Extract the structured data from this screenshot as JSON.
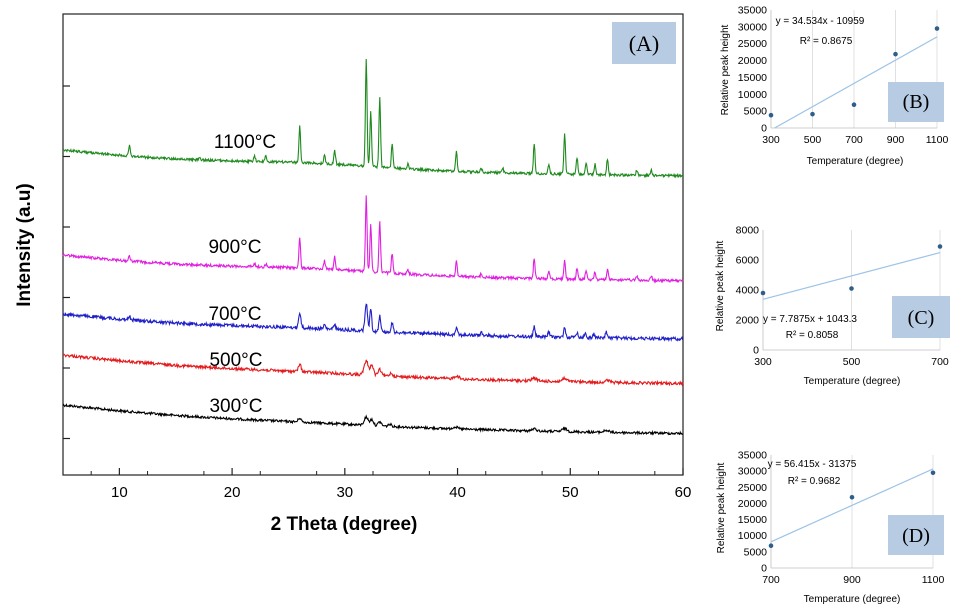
{
  "chart_data": [
    {
      "id": "A",
      "type": "line",
      "panel_label": "(A)",
      "title": "",
      "xlabel": "2 Theta (degree)",
      "ylabel": "Intensity (a.u)",
      "xlim": [
        5,
        60
      ],
      "xticks": [
        10,
        20,
        30,
        40,
        50,
        60
      ],
      "series": [
        {
          "name": "300°C",
          "color": "#000000",
          "baseline": 405,
          "end_baseline": 437,
          "noise": 1.2,
          "ascale": 0.3,
          "peaks": [
            [
              26.0,
              4,
              0.18
            ],
            [
              31.9,
              8,
              0.25
            ],
            [
              32.4,
              6,
              0.2
            ],
            [
              33.1,
              4,
              0.2
            ],
            [
              34.0,
              2,
              0.2
            ],
            [
              39.8,
              2,
              0.3
            ],
            [
              46.8,
              2,
              0.3
            ],
            [
              49.5,
              3,
              0.3
            ],
            [
              53.2,
              2,
              0.3
            ]
          ]
        },
        {
          "name": "500°C",
          "color": "#e31a1c",
          "baseline": 355,
          "end_baseline": 387,
          "noise": 1.4,
          "ascale": 0.4,
          "peaks": [
            [
              26.0,
              7,
              0.18
            ],
            [
              31.9,
              14,
              0.25
            ],
            [
              32.4,
              10,
              0.2
            ],
            [
              33.1,
              6,
              0.2
            ],
            [
              34.1,
              3,
              0.2
            ],
            [
              39.9,
              3,
              0.3
            ],
            [
              46.8,
              3,
              0.3
            ],
            [
              49.5,
              3,
              0.3
            ],
            [
              53.3,
              2,
              0.3
            ]
          ]
        },
        {
          "name": "700°C",
          "color": "#1f1fc8",
          "baseline": 314,
          "end_baseline": 342,
          "noise": 1.6,
          "ascale": 0.55,
          "peaks": [
            [
              10.9,
              3,
              0.15
            ],
            [
              26.0,
              14,
              0.15
            ],
            [
              28.2,
              4,
              0.12
            ],
            [
              29.1,
              5,
              0.12
            ],
            [
              31.9,
              28,
              0.15
            ],
            [
              32.3,
              22,
              0.12
            ],
            [
              33.1,
              16,
              0.12
            ],
            [
              34.2,
              9,
              0.12
            ],
            [
              39.9,
              7,
              0.15
            ],
            [
              42.1,
              3,
              0.12
            ],
            [
              46.8,
              10,
              0.12
            ],
            [
              48.1,
              5,
              0.12
            ],
            [
              49.5,
              10,
              0.12
            ],
            [
              50.6,
              5,
              0.12
            ],
            [
              51.3,
              4,
              0.12
            ],
            [
              52.1,
              4,
              0.12
            ],
            [
              53.2,
              6,
              0.12
            ]
          ]
        },
        {
          "name": "900°C",
          "color": "#e020e0",
          "baseline": 255,
          "end_baseline": 284,
          "noise": 1.3,
          "ascale": 0.9,
          "peaks": [
            [
              10.9,
              5,
              0.1
            ],
            [
              22.0,
              3,
              0.1
            ],
            [
              23.0,
              3,
              0.1
            ],
            [
              26.0,
              30,
              0.1
            ],
            [
              28.2,
              8,
              0.1
            ],
            [
              29.1,
              13,
              0.1
            ],
            [
              31.9,
              75,
              0.1
            ],
            [
              32.3,
              48,
              0.1
            ],
            [
              33.1,
              50,
              0.1
            ],
            [
              34.2,
              20,
              0.1
            ],
            [
              35.6,
              4,
              0.1
            ],
            [
              39.9,
              17,
              0.1
            ],
            [
              42.1,
              4,
              0.1
            ],
            [
              46.8,
              21,
              0.1
            ],
            [
              48.1,
              8,
              0.1
            ],
            [
              49.5,
              20,
              0.1
            ],
            [
              50.6,
              11,
              0.1
            ],
            [
              51.4,
              9,
              0.1
            ],
            [
              52.2,
              8,
              0.1
            ],
            [
              53.3,
              11,
              0.1
            ],
            [
              55.9,
              4,
              0.1
            ],
            [
              57.2,
              4,
              0.1
            ]
          ]
        },
        {
          "name": "1100°C",
          "color": "#1e8a1e",
          "baseline": 150,
          "end_baseline": 179,
          "noise": 1.2,
          "ascale": 1.0,
          "peaks": [
            [
              10.9,
              10,
              0.1
            ],
            [
              17.1,
              3,
              0.1
            ],
            [
              22.0,
              5,
              0.1
            ],
            [
              23.0,
              6,
              0.1
            ],
            [
              26.0,
              36,
              0.1
            ],
            [
              28.2,
              9,
              0.1
            ],
            [
              29.1,
              14,
              0.1
            ],
            [
              31.9,
              108,
              0.1
            ],
            [
              32.3,
              56,
              0.1
            ],
            [
              33.1,
              70,
              0.1
            ],
            [
              34.2,
              24,
              0.1
            ],
            [
              35.6,
              5,
              0.1
            ],
            [
              39.9,
              20,
              0.1
            ],
            [
              42.1,
              4,
              0.1
            ],
            [
              44.0,
              5,
              0.1
            ],
            [
              46.8,
              30,
              0.1
            ],
            [
              48.1,
              10,
              0.1
            ],
            [
              49.5,
              40,
              0.1
            ],
            [
              50.6,
              17,
              0.1
            ],
            [
              51.4,
              12,
              0.1
            ],
            [
              52.2,
              11,
              0.1
            ],
            [
              53.3,
              16,
              0.1
            ],
            [
              55.9,
              5,
              0.1
            ],
            [
              57.2,
              5,
              0.1
            ]
          ]
        }
      ],
      "curve_labels": [
        "1100°C",
        "900°C",
        "700°C",
        "500°C",
        "300°C"
      ]
    },
    {
      "id": "B",
      "type": "scatter",
      "panel_label": "(B)",
      "xlabel": "Temperature (degree)",
      "ylabel": "Relative peak height",
      "xlim": [
        300,
        1100
      ],
      "ylim": [
        0,
        35000
      ],
      "xticks": [
        "300",
        "500",
        "700",
        "900",
        "1100"
      ],
      "yticks": [
        "0",
        "5000",
        "10000",
        "15000",
        "20000",
        "25000",
        "30000",
        "35000"
      ],
      "points": [
        [
          300,
          3800
        ],
        [
          500,
          4100
        ],
        [
          700,
          6900
        ],
        [
          900,
          21900
        ],
        [
          1100,
          29500
        ]
      ],
      "trendline": {
        "slope": 34.534,
        "intercept": -10959
      },
      "equation": "y = 34.534x - 10959",
      "r_squared": "R² = 0.8675"
    },
    {
      "id": "C",
      "type": "scatter",
      "panel_label": "(C)",
      "xlabel": "Temperature (degree)",
      "ylabel": "Relative peak height",
      "xlim": [
        300,
        700
      ],
      "ylim": [
        0,
        8000
      ],
      "xticks": [
        "300",
        "500",
        "700"
      ],
      "yticks": [
        "0",
        "2000",
        "4000",
        "6000",
        "8000"
      ],
      "points": [
        [
          300,
          3800
        ],
        [
          500,
          4100
        ],
        [
          700,
          6900
        ]
      ],
      "trendline": {
        "slope": 7.7875,
        "intercept": 1043.3
      },
      "equation": "y = 7.7875x + 1043.3",
      "r_squared": "R² = 0.8058"
    },
    {
      "id": "D",
      "type": "scatter",
      "panel_label": "(D)",
      "xlabel": "Temperature (degree)",
      "ylabel": "Relative peak height",
      "xlim": [
        700,
        1100
      ],
      "ylim": [
        0,
        35000
      ],
      "xticks": [
        "700",
        "900",
        "1100"
      ],
      "yticks": [
        "0",
        "5000",
        "10000",
        "15000",
        "20000",
        "25000",
        "30000",
        "35000"
      ],
      "points": [
        [
          700,
          6900
        ],
        [
          900,
          21900
        ],
        [
          1100,
          29500
        ]
      ],
      "trendline": {
        "slope": 56.415,
        "intercept": -31375
      },
      "equation": "y = 56.415x - 31375",
      "r_squared": "R² = 0.9682"
    }
  ]
}
